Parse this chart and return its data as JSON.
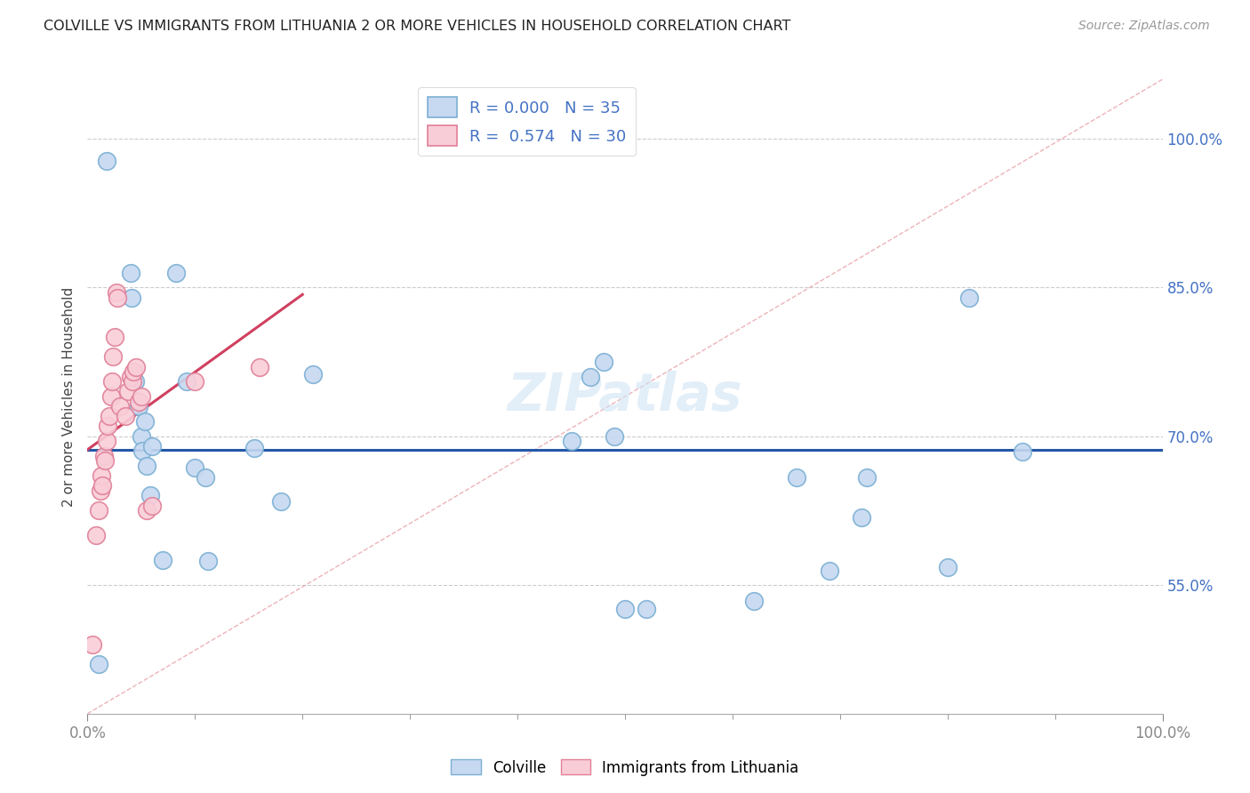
{
  "title": "COLVILLE VS IMMIGRANTS FROM LITHUANIA 2 OR MORE VEHICLES IN HOUSEHOLD CORRELATION CHART",
  "source": "Source: ZipAtlas.com",
  "ylabel": "2 or more Vehicles in Household",
  "xmin": 0.0,
  "xmax": 1.0,
  "ymin": 0.42,
  "ymax": 1.06,
  "ytick_labels": [
    "55.0%",
    "70.0%",
    "85.0%",
    "100.0%"
  ],
  "ytick_values": [
    0.55,
    0.7,
    0.85,
    1.0
  ],
  "xtick_labels": [
    "0.0%",
    "100.0%"
  ],
  "xtick_values": [
    0.0,
    1.0
  ],
  "colville_R": "0.000",
  "colville_N": "35",
  "lithuania_R": "0.574",
  "lithuania_N": "30",
  "colville_color": "#c6d9f1",
  "colville_edge": "#7bafd4",
  "lithuania_color": "#f9cdd8",
  "lithuania_edge": "#e08098",
  "trend_colville_color": "#2458a8",
  "trend_lithuania_color": "#d04060",
  "diagonal_color": "#e8a0a8",
  "diagonal_style": "--",
  "colville_scatter": [
    [
      0.018,
      0.978
    ],
    [
      0.04,
      0.865
    ],
    [
      0.041,
      0.84
    ],
    [
      0.044,
      0.755
    ],
    [
      0.048,
      0.73
    ],
    [
      0.05,
      0.7
    ],
    [
      0.051,
      0.685
    ],
    [
      0.053,
      0.715
    ],
    [
      0.055,
      0.67
    ],
    [
      0.058,
      0.64
    ],
    [
      0.06,
      0.69
    ],
    [
      0.07,
      0.575
    ],
    [
      0.082,
      0.865
    ],
    [
      0.092,
      0.755
    ],
    [
      0.1,
      0.668
    ],
    [
      0.11,
      0.658
    ],
    [
      0.112,
      0.574
    ],
    [
      0.155,
      0.688
    ],
    [
      0.18,
      0.634
    ],
    [
      0.21,
      0.762
    ],
    [
      0.45,
      0.695
    ],
    [
      0.468,
      0.76
    ],
    [
      0.48,
      0.775
    ],
    [
      0.49,
      0.7
    ],
    [
      0.5,
      0.526
    ],
    [
      0.52,
      0.526
    ],
    [
      0.62,
      0.534
    ],
    [
      0.66,
      0.658
    ],
    [
      0.69,
      0.564
    ],
    [
      0.72,
      0.618
    ],
    [
      0.725,
      0.658
    ],
    [
      0.8,
      0.568
    ],
    [
      0.82,
      0.84
    ],
    [
      0.87,
      0.684
    ],
    [
      0.01,
      0.47
    ]
  ],
  "lithuania_scatter": [
    [
      0.005,
      0.49
    ],
    [
      0.008,
      0.6
    ],
    [
      0.01,
      0.625
    ],
    [
      0.012,
      0.645
    ],
    [
      0.013,
      0.66
    ],
    [
      0.014,
      0.65
    ],
    [
      0.015,
      0.68
    ],
    [
      0.016,
      0.675
    ],
    [
      0.018,
      0.695
    ],
    [
      0.019,
      0.71
    ],
    [
      0.02,
      0.72
    ],
    [
      0.022,
      0.74
    ],
    [
      0.023,
      0.755
    ],
    [
      0.024,
      0.78
    ],
    [
      0.025,
      0.8
    ],
    [
      0.027,
      0.845
    ],
    [
      0.028,
      0.84
    ],
    [
      0.03,
      0.73
    ],
    [
      0.035,
      0.72
    ],
    [
      0.038,
      0.745
    ],
    [
      0.04,
      0.76
    ],
    [
      0.042,
      0.755
    ],
    [
      0.043,
      0.765
    ],
    [
      0.045,
      0.77
    ],
    [
      0.048,
      0.735
    ],
    [
      0.05,
      0.74
    ],
    [
      0.055,
      0.625
    ],
    [
      0.06,
      0.63
    ],
    [
      0.1,
      0.755
    ],
    [
      0.16,
      0.77
    ]
  ],
  "watermark": "ZIPatlas",
  "dot_size": 200
}
